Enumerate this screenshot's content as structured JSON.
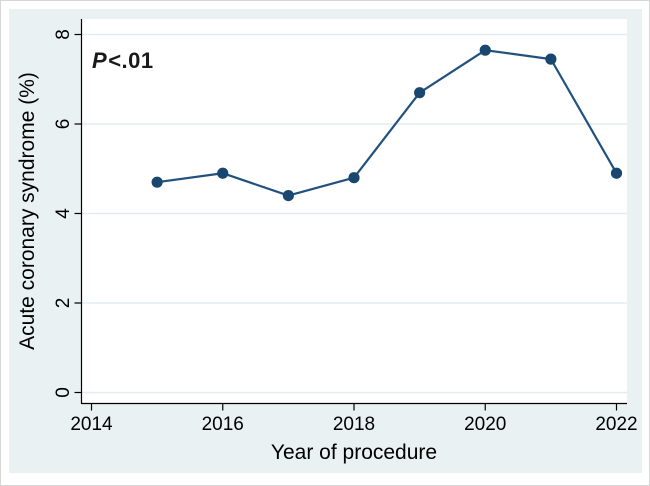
{
  "chart_data": {
    "type": "line",
    "title": "",
    "xlabel": "Year of procedure",
    "ylabel": "Acute coronary syndrome (%)",
    "x": [
      2015,
      2016,
      2017,
      2018,
      2019,
      2020,
      2021,
      2022
    ],
    "series": [
      {
        "name": "Acute coronary syndrome (%)",
        "values": [
          4.7,
          4.9,
          4.4,
          4.8,
          6.7,
          7.65,
          7.45,
          4.9
        ]
      }
    ],
    "xticks": [
      2014,
      2016,
      2018,
      2020,
      2022
    ],
    "yticks": [
      0,
      2,
      4,
      6,
      8
    ],
    "xlim": [
      2013.84,
      2022.16
    ],
    "ylim": [
      -0.23,
      8.35
    ],
    "grid": "horizontal",
    "legend": "none",
    "annotation_text": "P<.01"
  },
  "annotation": {
    "symbol": "P",
    "value": "<.01"
  },
  "colors": {
    "line": "#21527f",
    "marker": "#1A476F",
    "surround_background": "#E9F1F2",
    "plot_background": "#FFFFFF",
    "gridline": "#E2EDEF",
    "axis": "#000000",
    "text": "#000000"
  }
}
